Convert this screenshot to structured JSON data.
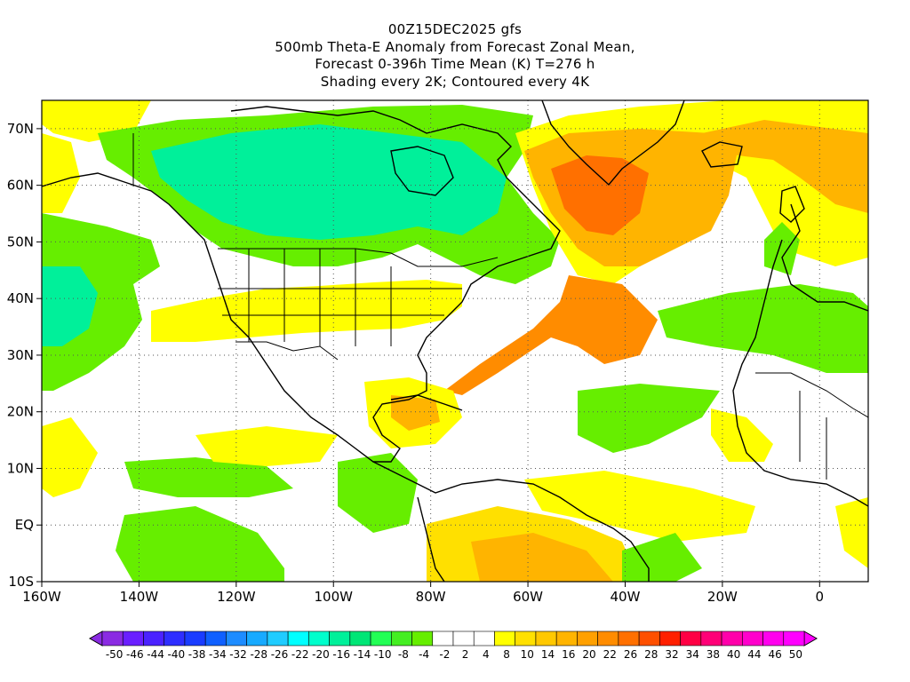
{
  "title": {
    "line1": "00Z15DEC2025 gfs",
    "line2": "500mb Theta-E Anomaly from Forecast Zonal Mean,",
    "line3": "Forecast 0-396h Time Mean (K) T=276 h",
    "line4": "Shading every 2K; Contoured every 4K"
  },
  "map": {
    "lon_range": [
      -160,
      10
    ],
    "lat_range": [
      -10,
      75
    ],
    "lon_ticks": [
      "160W",
      "140W",
      "120W",
      "100W",
      "80W",
      "60W",
      "40W",
      "20W",
      "0"
    ],
    "lat_ticks": [
      "70N",
      "60N",
      "50N",
      "40N",
      "30N",
      "20N",
      "10N",
      "EQ",
      "10S"
    ],
    "gridlines": true
  },
  "colorbar": {
    "labels": [
      "-50",
      "-46",
      "-44",
      "-40",
      "-38",
      "-34",
      "-32",
      "-28",
      "-26",
      "-22",
      "-20",
      "-16",
      "-14",
      "-10",
      "-8",
      "-4",
      "-2",
      "2",
      "4",
      "8",
      "10",
      "14",
      "16",
      "20",
      "22",
      "26",
      "28",
      "32",
      "34",
      "38",
      "40",
      "44",
      "46",
      "50"
    ],
    "colors": [
      "#8a2be2",
      "#6a1fff",
      "#4b22ff",
      "#2e2eff",
      "#1a3cff",
      "#1060ff",
      "#1e8cff",
      "#18aaff",
      "#20ccff",
      "#00ffff",
      "#00ffcc",
      "#00f09a",
      "#00e676",
      "#22ff55",
      "#44ee22",
      "#66ee00",
      "#ffffff",
      "#ffffff",
      "#ffffff",
      "#ffff00",
      "#ffe000",
      "#ffc800",
      "#ffb400",
      "#ffa000",
      "#ff8c00",
      "#ff7000",
      "#ff5000",
      "#ff2000",
      "#ff0044",
      "#ff0077",
      "#ff00aa",
      "#ff00cc",
      "#ff00ee",
      "#ff00ff"
    ],
    "shade_colors": {
      "green": "#66ee00",
      "green_dark": "#22ff55",
      "cyan": "#00f09a",
      "yellow": "#ffff00",
      "yellow2": "#ffe000",
      "orange": "#ffb400",
      "orange2": "#ff8c00",
      "red": "#ff7000"
    }
  }
}
